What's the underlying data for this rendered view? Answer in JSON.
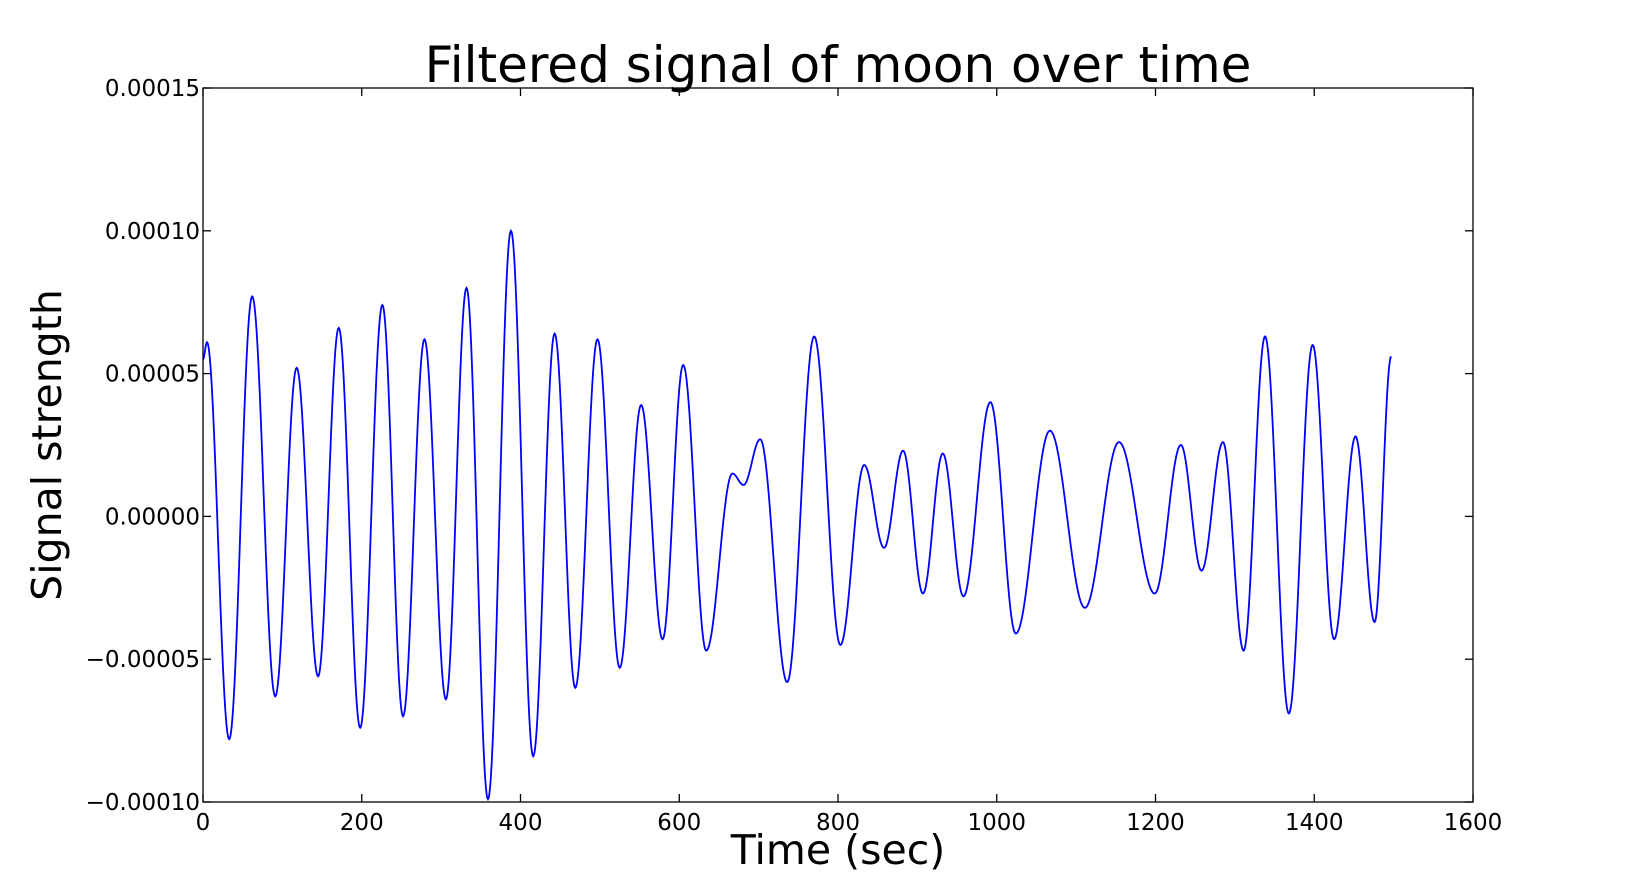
{
  "chart_data": {
    "type": "line",
    "title": "Filtered signal of moon over time",
    "xlabel": "Time (sec)",
    "ylabel": "Signal strength",
    "xlim": [
      0,
      1600
    ],
    "ylim": [
      -0.0001,
      0.00015
    ],
    "xticks": [
      {
        "value": 0,
        "label": "0"
      },
      {
        "value": 200,
        "label": "200"
      },
      {
        "value": 400,
        "label": "400"
      },
      {
        "value": 600,
        "label": "600"
      },
      {
        "value": 800,
        "label": "800"
      },
      {
        "value": 1000,
        "label": "1000"
      },
      {
        "value": 1200,
        "label": "1200"
      },
      {
        "value": 1400,
        "label": "1400"
      },
      {
        "value": 1600,
        "label": "1600"
      }
    ],
    "yticks": [
      {
        "value": -0.0001,
        "label": "−0.00010"
      },
      {
        "value": -5e-05,
        "label": "−0.00005"
      },
      {
        "value": 0,
        "label": "0.00000"
      },
      {
        "value": 5e-05,
        "label": "0.00005"
      },
      {
        "value": 0.0001,
        "label": "0.00010"
      },
      {
        "value": 0.00015,
        "label": "0.00015"
      }
    ],
    "grid": false,
    "line_color": "#0000ff",
    "series": [
      {
        "extrema": [
          [
            0,
            5.5e-05
          ],
          [
            5,
            6.1e-05
          ],
          [
            33,
            -7.8e-05
          ],
          [
            62,
            7.7e-05
          ],
          [
            91,
            -6.3e-05
          ],
          [
            118,
            5.2e-05
          ],
          [
            145,
            -5.6e-05
          ],
          [
            171,
            6.6e-05
          ],
          [
            198,
            -7.4e-05
          ],
          [
            226,
            7.4e-05
          ],
          [
            252,
            -7e-05
          ],
          [
            279,
            6.2e-05
          ],
          [
            306,
            -6.4e-05
          ],
          [
            332,
            8e-05
          ],
          [
            359,
            -9.9e-05
          ],
          [
            388,
            0.0001
          ],
          [
            416,
            -8.4e-05
          ],
          [
            443,
            6.4e-05
          ],
          [
            469,
            -6e-05
          ],
          [
            497,
            6.2e-05
          ],
          [
            525,
            -5.3e-05
          ],
          [
            552,
            3.9e-05
          ],
          [
            579,
            -4.3e-05
          ],
          [
            605,
            5.3e-05
          ],
          [
            634,
            -4.7e-05
          ],
          [
            667,
            1.5e-05
          ],
          [
            681,
            1.1e-05
          ],
          [
            702,
            2.7e-05
          ],
          [
            736,
            -5.8e-05
          ],
          [
            770,
            6.3e-05
          ],
          [
            803,
            -4.5e-05
          ],
          [
            833,
            1.8e-05
          ],
          [
            858,
            -1.1e-05
          ],
          [
            882,
            2.3e-05
          ],
          [
            907,
            -2.7e-05
          ],
          [
            932,
            2.2e-05
          ],
          [
            958,
            -2.8e-05
          ],
          [
            992,
            4e-05
          ],
          [
            1024,
            -4.1e-05
          ],
          [
            1067,
            3e-05
          ],
          [
            1111,
            -3.2e-05
          ],
          [
            1154,
            2.6e-05
          ],
          [
            1199,
            -2.7e-05
          ],
          [
            1232,
            2.5e-05
          ],
          [
            1258,
            -1.9e-05
          ],
          [
            1285,
            2.6e-05
          ],
          [
            1311,
            -4.7e-05
          ],
          [
            1338,
            6.3e-05
          ],
          [
            1368,
            -6.9e-05
          ],
          [
            1398,
            6e-05
          ],
          [
            1425,
            -4.3e-05
          ],
          [
            1452,
            2.8e-05
          ],
          [
            1476,
            -3.7e-05
          ],
          [
            1497,
            5.6e-05
          ]
        ]
      }
    ]
  }
}
